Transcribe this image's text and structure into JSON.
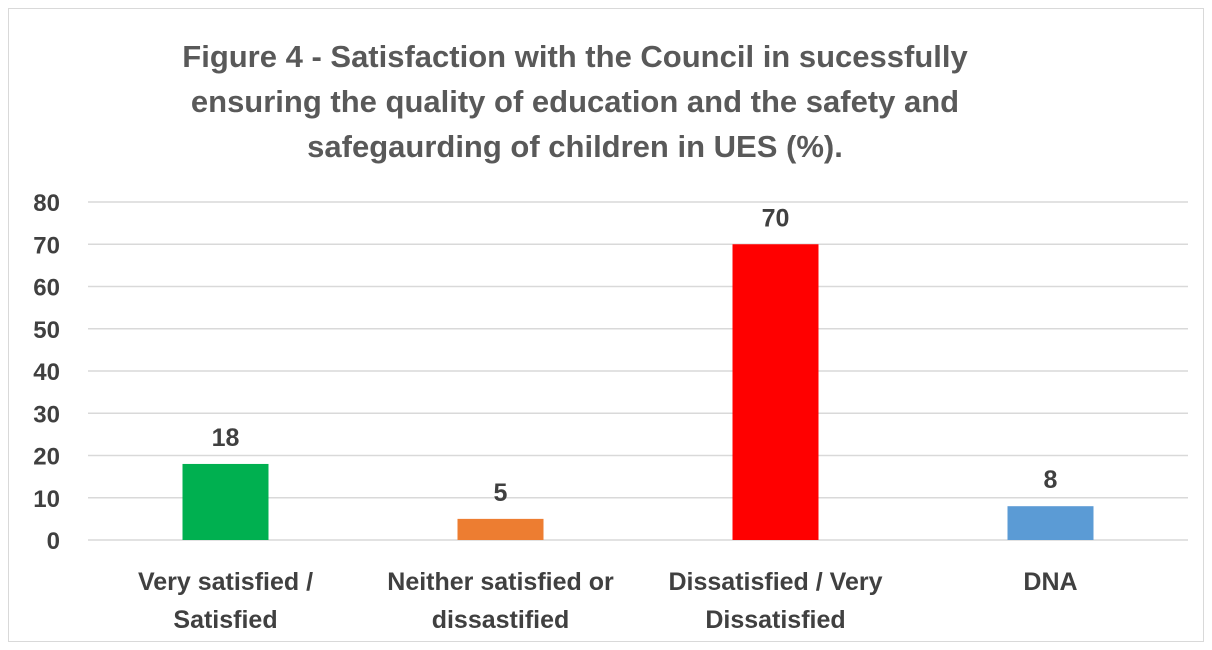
{
  "chart_data": {
    "type": "bar",
    "title": "Figure  4 - Satisfaction with the Council in sucessfully ensuring the quality of education and the safety and safegaurding of children in UES (%).",
    "title_lines": [
      "Figure  4 - Satisfaction with the Council in sucessfully",
      "ensuring the quality of education and the safety and",
      "safegaurding of children in UES (%)."
    ],
    "categories": [
      [
        "Very satisfied /",
        "Satisfied"
      ],
      [
        "Neither satisfied or",
        "dissastified"
      ],
      [
        "Dissatisfied / Very",
        "Dissatisfied"
      ],
      [
        "DNA"
      ]
    ],
    "values": [
      18,
      5,
      70,
      8
    ],
    "bar_colors": [
      "#00b050",
      "#ed7d31",
      "#ff0000",
      "#5b9bd5"
    ],
    "ylim": [
      0,
      80
    ],
    "yticks": [
      0,
      10,
      20,
      30,
      40,
      50,
      60,
      70,
      80
    ],
    "xlabel": "",
    "ylabel": "",
    "grid": true,
    "data_labels": true,
    "legend": "none",
    "text_color": "#404040",
    "grid_color": "#d9d9d9"
  }
}
